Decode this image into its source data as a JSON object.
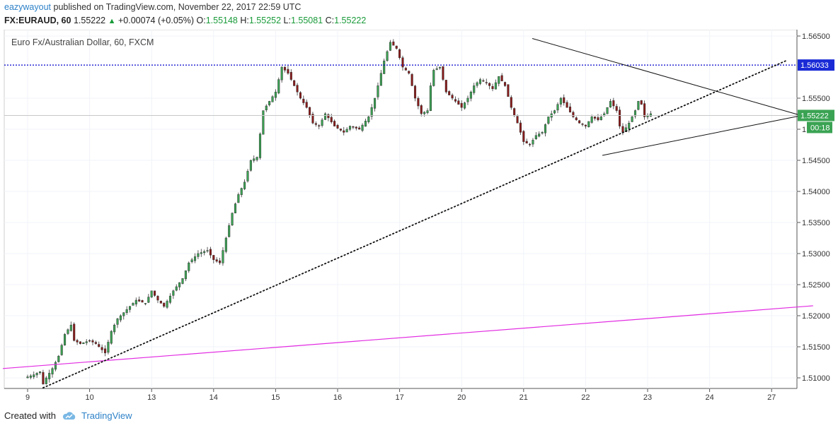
{
  "header": {
    "user": "eazywayout",
    "published_text": " published on TradingView.com, November 22, 2017 22:59 UTC",
    "symbol": "FX:EURAUD, 60",
    "last": " 1.55222",
    "change": " +0.00074 (+0.05%)",
    "o_label": " O:",
    "o_value": "1.55148",
    "h_label": " H:",
    "h_value": "1.55252",
    "l_label": " L:",
    "l_value": "1.55081",
    "c_label": " C:",
    "c_value": "1.55222"
  },
  "footer": {
    "created_with": "Created with",
    "brand": "TradingView"
  },
  "chart_data": {
    "type": "candlestick",
    "title": "Euro Fx/Australian Dollar, 60, FXCM",
    "x_ticks": [
      "9",
      "10",
      "13",
      "14",
      "15",
      "16",
      "17",
      "20",
      "21",
      "22",
      "23",
      "24",
      "27"
    ],
    "y_ticks": [
      "1.56500",
      "1.55500",
      "1.55000",
      "1.54500",
      "1.54000",
      "1.53500",
      "1.53000",
      "1.52500",
      "1.52000",
      "1.51500",
      "1.51000"
    ],
    "ylim": [
      1.5083,
      1.5667
    ],
    "price_labels": {
      "horizontal_line": "1.56033",
      "last_price": "1.55222",
      "countdown": "00:18"
    },
    "horizontal_line_value": 1.56033,
    "colors": {
      "up": "#3aa353",
      "down": "#8b1a1a",
      "horizontal_line": "#0000cc",
      "trend_pink": "#e22be2",
      "lines": "#000000"
    },
    "close_path": [
      [
        8.95,
        1.51
      ],
      [
        9.1,
        1.5105
      ],
      [
        9.2,
        1.511
      ],
      [
        9.25,
        1.509
      ],
      [
        9.3,
        1.51
      ],
      [
        9.4,
        1.5115
      ],
      [
        9.5,
        1.5135
      ],
      [
        9.6,
        1.517
      ],
      [
        9.7,
        1.5185
      ],
      [
        9.75,
        1.516
      ],
      [
        9.85,
        1.5155
      ],
      [
        10.0,
        1.516
      ],
      [
        10.1,
        1.5155
      ],
      [
        10.25,
        1.514
      ],
      [
        10.35,
        1.5175
      ],
      [
        10.45,
        1.5195
      ],
      [
        10.6,
        1.521
      ],
      [
        10.75,
        1.5225
      ],
      [
        10.9,
        1.522
      ],
      [
        11.0,
        1.524
      ],
      [
        11.1,
        1.5225
      ],
      [
        11.2,
        1.5215
      ],
      [
        11.35,
        1.524
      ],
      [
        11.5,
        1.526
      ],
      [
        11.6,
        1.5285
      ],
      [
        11.75,
        1.53
      ],
      [
        11.9,
        1.5305
      ],
      [
        12.0,
        1.529
      ],
      [
        12.1,
        1.5285
      ],
      [
        12.2,
        1.5325
      ],
      [
        12.3,
        1.5365
      ],
      [
        12.4,
        1.5395
      ],
      [
        12.5,
        1.5415
      ],
      [
        12.6,
        1.545
      ],
      [
        12.7,
        1.5455
      ],
      [
        12.8,
        1.553
      ],
      [
        12.9,
        1.5545
      ],
      [
        13.0,
        1.556
      ],
      [
        13.1,
        1.56
      ],
      [
        13.2,
        1.559
      ],
      [
        13.3,
        1.557
      ],
      [
        13.4,
        1.555
      ],
      [
        13.5,
        1.5535
      ],
      [
        13.6,
        1.551
      ],
      [
        13.7,
        1.5505
      ],
      [
        13.8,
        1.5525
      ],
      [
        13.95,
        1.5505
      ],
      [
        14.1,
        1.5495
      ],
      [
        14.2,
        1.5505
      ],
      [
        14.35,
        1.55
      ],
      [
        14.5,
        1.552
      ],
      [
        14.6,
        1.555
      ],
      [
        14.7,
        1.559
      ],
      [
        14.75,
        1.561
      ],
      [
        14.85,
        1.564
      ],
      [
        14.95,
        1.563
      ],
      [
        15.05,
        1.56
      ],
      [
        15.15,
        1.559
      ],
      [
        15.25,
        1.555
      ],
      [
        15.35,
        1.5525
      ],
      [
        15.45,
        1.553
      ],
      [
        15.5,
        1.557
      ],
      [
        15.55,
        1.5595
      ],
      [
        15.65,
        1.56
      ],
      [
        15.75,
        1.556
      ],
      [
        15.9,
        1.5545
      ],
      [
        16.0,
        1.5535
      ],
      [
        16.1,
        1.555
      ],
      [
        16.2,
        1.557
      ],
      [
        16.3,
        1.558
      ],
      [
        16.4,
        1.5575
      ],
      [
        16.5,
        1.5565
      ],
      [
        16.6,
        1.5585
      ],
      [
        16.7,
        1.557
      ],
      [
        16.8,
        1.5535
      ],
      [
        16.9,
        1.551
      ],
      [
        16.95,
        1.5495
      ],
      [
        17.0,
        1.548
      ],
      [
        17.1,
        1.5475
      ],
      [
        17.2,
        1.549
      ],
      [
        17.3,
        1.5495
      ],
      [
        17.4,
        1.552
      ],
      [
        17.5,
        1.553
      ],
      [
        17.55,
        1.554
      ],
      [
        17.6,
        1.555
      ],
      [
        17.7,
        1.5535
      ],
      [
        17.8,
        1.552
      ],
      [
        17.9,
        1.551
      ],
      [
        18.0,
        1.5505
      ],
      [
        18.1,
        1.552
      ],
      [
        18.2,
        1.5515
      ],
      [
        18.3,
        1.5525
      ],
      [
        18.4,
        1.5545
      ],
      [
        18.5,
        1.553
      ],
      [
        18.55,
        1.5505
      ],
      [
        18.6,
        1.5495
      ],
      [
        18.7,
        1.551
      ],
      [
        18.8,
        1.553
      ],
      [
        18.85,
        1.5545
      ],
      [
        18.9,
        1.554
      ],
      [
        18.95,
        1.552
      ],
      [
        19.05,
        1.5525
      ]
    ],
    "upper_triangle_line": {
      "from": [
        17.14,
        1.5646
      ],
      "to": [
        21.48,
        1.5522
      ]
    },
    "lower_triangle_line": {
      "from": [
        18.27,
        1.5458
      ],
      "to": [
        21.48,
        1.5522
      ]
    },
    "dotted_trendline": {
      "from": [
        9.25,
        1.5084
      ],
      "to": [
        21.25,
        1.5611
      ]
    },
    "pink_trendline": {
      "from": [
        8.6,
        1.5115
      ],
      "to": [
        21.67,
        1.5216
      ]
    }
  }
}
